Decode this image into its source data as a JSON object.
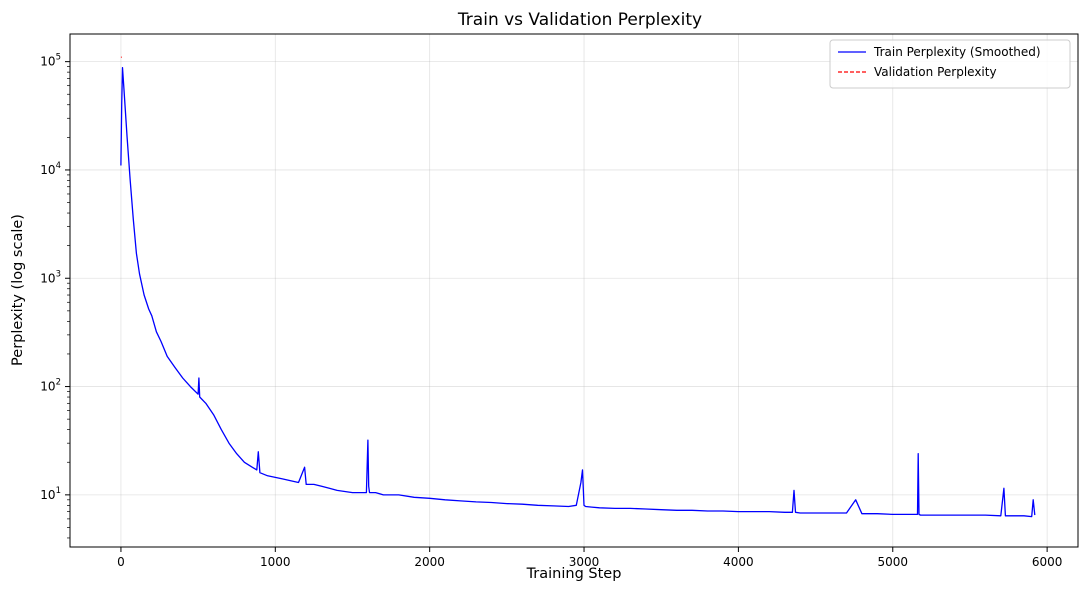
{
  "chart_data": {
    "type": "line",
    "title": "Train vs Validation Perplexity",
    "xlabel": "Training Step",
    "ylabel": "Perplexity (log scale)",
    "x_scale": "linear",
    "y_scale": "log",
    "xlim": [
      -330,
      6200
    ],
    "ylim": [
      3.3,
      180000
    ],
    "x_ticks": [
      0,
      1000,
      2000,
      3000,
      4000,
      5000,
      6000
    ],
    "y_ticks": [
      {
        "value": 10,
        "label_base": "10",
        "label_exp": "1"
      },
      {
        "value": 100,
        "label_base": "10",
        "label_exp": "2"
      },
      {
        "value": 1000,
        "label_base": "10",
        "label_exp": "3"
      },
      {
        "value": 10000,
        "label_base": "10",
        "label_exp": "4"
      },
      {
        "value": 100000,
        "label_base": "10",
        "label_exp": "5"
      }
    ],
    "grid": true,
    "legend_position": "top-right",
    "series": [
      {
        "name": "Train Perplexity (Smoothed)",
        "color": "#0000ff",
        "style": "solid",
        "x": [
          0,
          5,
          10,
          20,
          40,
          60,
          80,
          100,
          120,
          150,
          180,
          200,
          230,
          260,
          300,
          350,
          400,
          450,
          500,
          505,
          510,
          550,
          600,
          650,
          700,
          750,
          800,
          850,
          880,
          890,
          900,
          950,
          1000,
          1050,
          1100,
          1150,
          1190,
          1200,
          1250,
          1300,
          1350,
          1400,
          1500,
          1590,
          1600,
          1605,
          1610,
          1650,
          1700,
          1800,
          1900,
          2000,
          2100,
          2200,
          2300,
          2400,
          2500,
          2600,
          2700,
          2800,
          2900,
          2950,
          2980,
          2990,
          3000,
          3010,
          3050,
          3100,
          3200,
          3300,
          3400,
          3500,
          3600,
          3700,
          3800,
          3900,
          4000,
          4100,
          4150,
          4200,
          4300,
          4350,
          4360,
          4370,
          4400,
          4500,
          4600,
          4700,
          4760,
          4800,
          4900,
          5000,
          5100,
          5160,
          5165,
          5170,
          5180,
          5200,
          5300,
          5400,
          5500,
          5600,
          5700,
          5720,
          5730,
          5750,
          5800,
          5850,
          5900,
          5910,
          5920
        ],
        "y": [
          11000,
          40000,
          88000,
          55000,
          20000,
          8000,
          3500,
          1700,
          1100,
          700,
          520,
          450,
          320,
          260,
          190,
          150,
          120,
          100,
          85,
          120,
          80,
          70,
          55,
          40,
          30,
          24,
          20,
          18,
          17,
          25,
          16,
          15,
          14.5,
          14,
          13.5,
          13,
          18,
          12.5,
          12.5,
          12,
          11.5,
          11,
          10.5,
          10.5,
          32,
          12,
          10.5,
          10.5,
          10,
          10,
          9.5,
          9.3,
          9,
          8.8,
          8.6,
          8.5,
          8.3,
          8.2,
          8,
          7.9,
          7.8,
          8,
          13,
          17,
          8,
          7.8,
          7.7,
          7.6,
          7.5,
          7.5,
          7.4,
          7.3,
          7.2,
          7.2,
          7.1,
          7.1,
          7,
          7,
          7,
          7,
          6.9,
          6.9,
          11,
          6.9,
          6.8,
          6.8,
          6.8,
          6.8,
          9,
          6.7,
          6.7,
          6.6,
          6.6,
          6.6,
          24,
          6.6,
          6.5,
          6.5,
          6.5,
          6.5,
          6.5,
          6.5,
          6.4,
          11.5,
          6.4,
          6.4,
          6.4,
          6.4,
          6.3,
          9,
          6.5
        ]
      },
      {
        "name": "Validation Perplexity",
        "color": "#ff0000",
        "style": "dashed",
        "x": [
          0,
          5
        ],
        "y": [
          110000,
          110000
        ]
      }
    ]
  }
}
